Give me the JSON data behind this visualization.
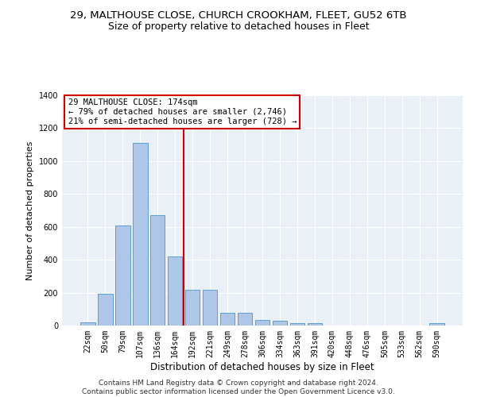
{
  "title1": "29, MALTHOUSE CLOSE, CHURCH CROOKHAM, FLEET, GU52 6TB",
  "title2": "Size of property relative to detached houses in Fleet",
  "xlabel": "Distribution of detached houses by size in Fleet",
  "ylabel": "Number of detached properties",
  "categories": [
    "22sqm",
    "50sqm",
    "79sqm",
    "107sqm",
    "136sqm",
    "164sqm",
    "192sqm",
    "221sqm",
    "249sqm",
    "278sqm",
    "306sqm",
    "334sqm",
    "363sqm",
    "391sqm",
    "420sqm",
    "448sqm",
    "476sqm",
    "505sqm",
    "533sqm",
    "562sqm",
    "590sqm"
  ],
  "values": [
    20,
    195,
    610,
    1110,
    670,
    420,
    215,
    215,
    75,
    75,
    35,
    28,
    13,
    13,
    0,
    0,
    0,
    0,
    0,
    0,
    13
  ],
  "bar_color": "#aec6e8",
  "bar_edge_color": "#5a9fd4",
  "vline_x": 5.5,
  "vline_color": "#cc0000",
  "annotation_text": "29 MALTHOUSE CLOSE: 174sqm\n← 79% of detached houses are smaller (2,746)\n21% of semi-detached houses are larger (728) →",
  "annotation_box_color": "#ffffff",
  "annotation_box_edgecolor": "#cc0000",
  "ylim": [
    0,
    1400
  ],
  "yticks": [
    0,
    200,
    400,
    600,
    800,
    1000,
    1200,
    1400
  ],
  "bg_color": "#eaf0f8",
  "footer": "Contains HM Land Registry data © Crown copyright and database right 2024.\nContains public sector information licensed under the Open Government Licence v3.0.",
  "title1_fontsize": 9.5,
  "title2_fontsize": 9,
  "xlabel_fontsize": 8.5,
  "ylabel_fontsize": 8,
  "footer_fontsize": 6.5,
  "tick_fontsize": 7,
  "annot_fontsize": 7.5
}
